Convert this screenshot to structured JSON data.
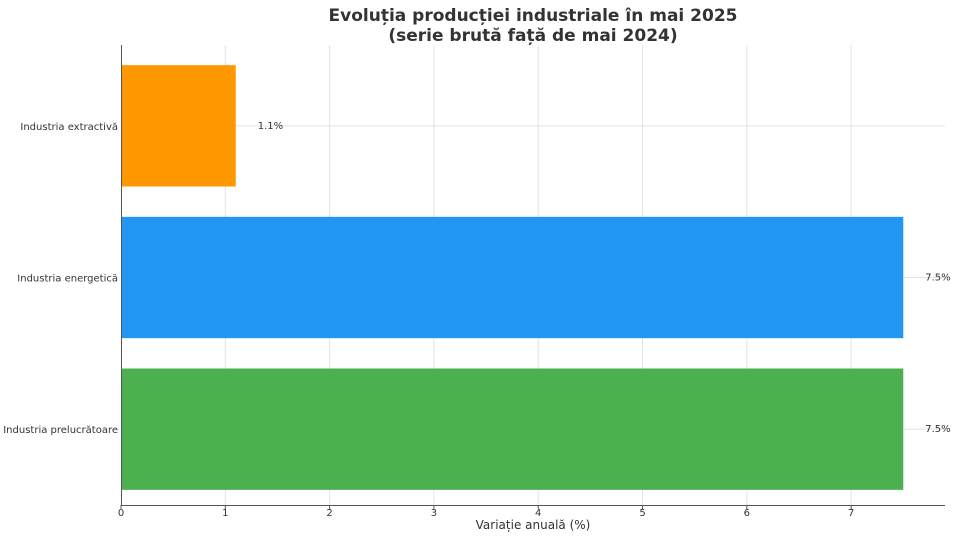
{
  "chart_data": {
    "type": "bar",
    "orientation": "horizontal",
    "title_lines": [
      "Evoluția producției industriale în mai 2025",
      "(serie brută față de mai 2024)"
    ],
    "xlabel": "Variație anuală (%)",
    "ylabel": "",
    "categories": [
      "Industria extractivă",
      "Industria energetică",
      "Industria prelucrătoare"
    ],
    "values": [
      1.1,
      7.5,
      7.5
    ],
    "data_labels": [
      "1.1%",
      "7.5%",
      "7.5%"
    ],
    "colors": [
      "#ff9800",
      "#2196f3",
      "#4caf50"
    ],
    "xlim": [
      0,
      7.9
    ],
    "xticks": [
      0,
      1,
      2,
      3,
      4,
      5,
      6,
      7
    ],
    "grid": true
  }
}
